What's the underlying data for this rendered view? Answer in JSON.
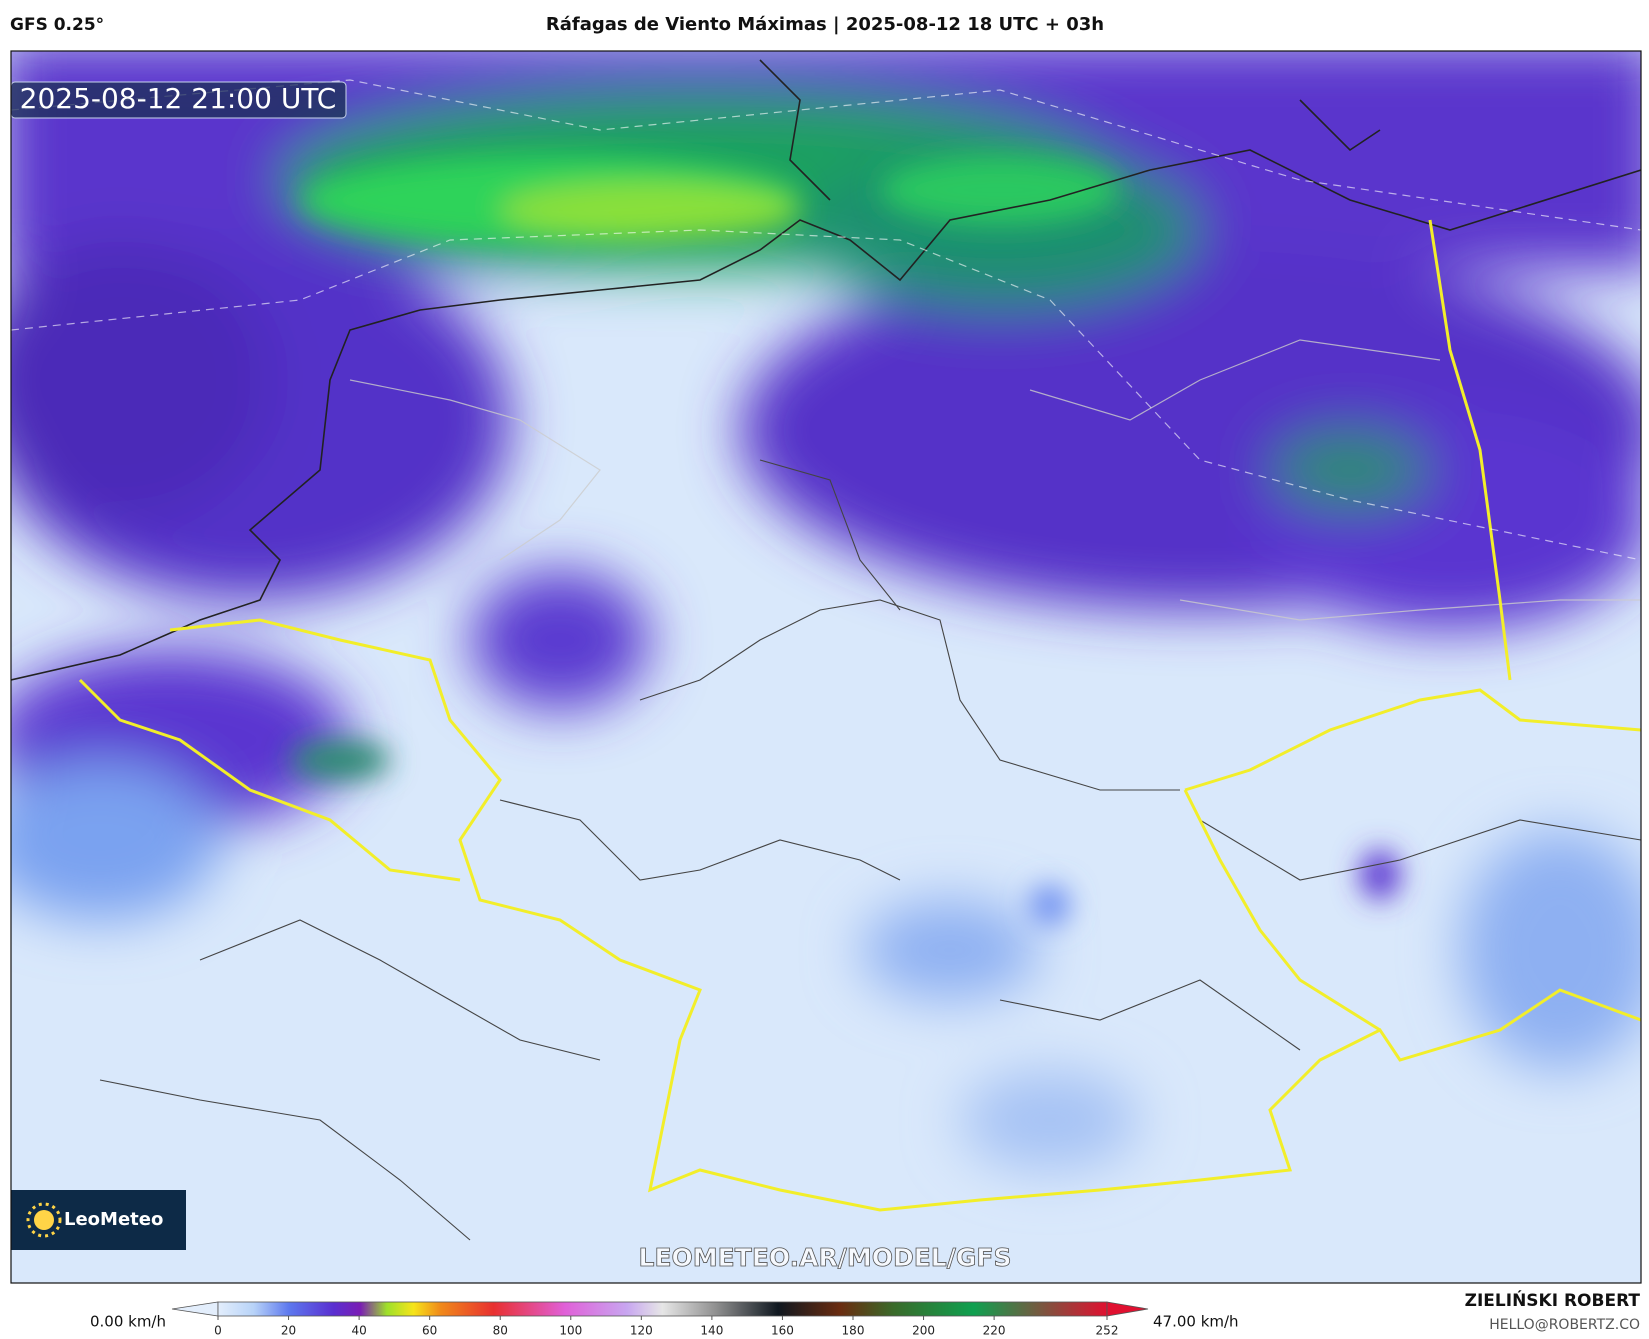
{
  "header": {
    "model": "GFS 0.25°",
    "title": "Ráfagas de Viento Máximas | 2025-08-12 18 UTC + 03h"
  },
  "map": {
    "timestamp": "2025-08-12 21:00 UTC",
    "logo": "LeoMeteo",
    "watermark": "LEOMETEO.AR/MODEL/GFS"
  },
  "colorbar": {
    "min_label": "0.00 km/h",
    "max_label": "47.00 km/h",
    "range": [
      0,
      252
    ],
    "ticks": [
      0,
      20,
      40,
      60,
      80,
      100,
      120,
      140,
      160,
      180,
      200,
      220,
      252
    ]
  },
  "credit": {
    "name": "ZIELIŃSKI ROBERT",
    "email": "HELLO@ROBERTZ.CO"
  }
}
